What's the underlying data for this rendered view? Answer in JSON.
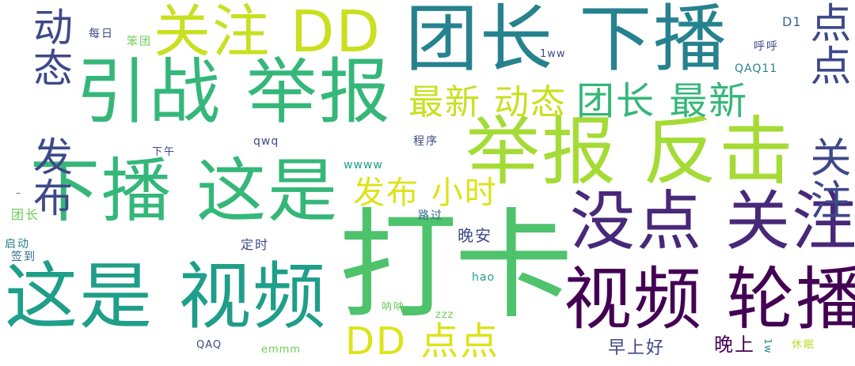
{
  "title": "word-cloud",
  "palette": {
    "dark_purple": "#440154",
    "purple": "#482878",
    "indigo": "#3e4989",
    "blue": "#31688e",
    "teal_blue": "#26828e",
    "teal": "#1f9e89",
    "green_teal": "#35b779",
    "green": "#4ec36b",
    "light_green": "#6ece58",
    "lime": "#b5de2b",
    "yellow": "#dde318"
  },
  "words": [
    {
      "text": "打卡",
      "color": "#4ec36b"
    },
    {
      "text": "团长 下播",
      "color": "#26828e"
    },
    {
      "text": "举报 反击",
      "color": "#a5db36"
    },
    {
      "text": "引战 举报",
      "color": "#35b779"
    },
    {
      "text": "下播 这是",
      "color": "#35b779"
    },
    {
      "text": "这是 视频",
      "color": "#1f9e89"
    },
    {
      "text": "视频 轮播",
      "color": "#440154"
    },
    {
      "text": "没点 关注",
      "color": "#482878"
    },
    {
      "text": "关注 DD",
      "color": "#c8e020"
    },
    {
      "text": "DD 点点",
      "color": "#dde318"
    },
    {
      "text": "动态 发布",
      "color": "#3e4989"
    },
    {
      "text": "点点 关注",
      "color": "#3e4989"
    },
    {
      "text": "最新 动态",
      "color": "#c8e020"
    },
    {
      "text": "团长 最新",
      "color": "#35b779"
    },
    {
      "text": "发布 小时",
      "color": "#dde318"
    },
    {
      "text": "早上好",
      "color": "#3e4989"
    },
    {
      "text": "晚上",
      "color": "#440154"
    },
    {
      "text": "晚安",
      "color": "#3e4989"
    },
    {
      "text": "团长",
      "color": "#6ece58"
    },
    {
      "text": "签到",
      "color": "#31688e"
    },
    {
      "text": "启动",
      "color": "#26828e"
    },
    {
      "text": "定时",
      "color": "#3e4989"
    },
    {
      "text": "路过",
      "color": "#31688e"
    },
    {
      "text": "每日",
      "color": "#3e4989"
    },
    {
      "text": "笨团",
      "color": "#6ece58"
    },
    {
      "text": "下午",
      "color": "#3e4989"
    },
    {
      "text": "qwq",
      "color": "#3e4989"
    },
    {
      "text": "程序",
      "color": "#3e4989"
    },
    {
      "text": "wwww",
      "color": "#1f9e89"
    },
    {
      "text": "1ww",
      "color": "#3e4989"
    },
    {
      "text": "D1",
      "color": "#31688e"
    },
    {
      "text": "呼呼",
      "color": "#3e4989"
    },
    {
      "text": "QAQ11",
      "color": "#26828e"
    },
    {
      "text": "hao",
      "color": "#1f9e89"
    },
    {
      "text": "呐呐",
      "color": "#6ece58"
    },
    {
      "text": "zzz",
      "color": "#6ece58"
    },
    {
      "text": "QAQ",
      "color": "#3e4989"
    },
    {
      "text": "emmm",
      "color": "#6ece58"
    },
    {
      "text": "1w",
      "color": "#26828e"
    },
    {
      "text": "休眠",
      "color": "#b5de2b"
    },
    {
      "text": "–",
      "color": "#31688e"
    }
  ]
}
